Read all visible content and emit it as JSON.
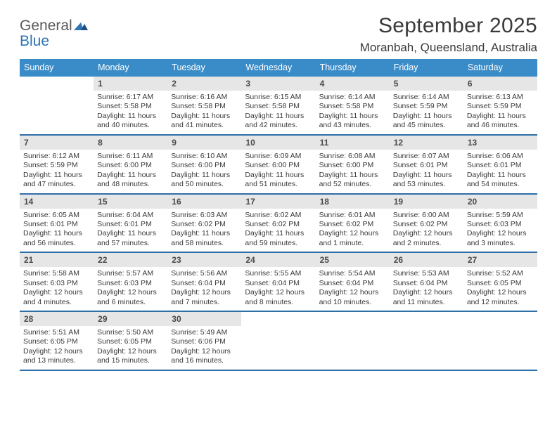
{
  "brand": {
    "word1": "General",
    "word2": "Blue",
    "mark_color": "#2f74b5",
    "text_color": "#5b5b5b"
  },
  "title": {
    "month": "September 2025",
    "location": "Moranbah, Queensland, Australia"
  },
  "colors": {
    "header_bg": "#3a8cc8",
    "header_text": "#ffffff",
    "daynum_bg": "#e6e6e6",
    "week_rule": "#2f6fa8",
    "body_text": "#3a3a3a",
    "page_bg": "#ffffff"
  },
  "typography": {
    "title_fontsize": 30,
    "location_fontsize": 17,
    "dayhead_fontsize": 12.5,
    "daynum_fontsize": 12,
    "cell_fontsize": 10.5
  },
  "type": "calendar-table",
  "day_headers": [
    "Sunday",
    "Monday",
    "Tuesday",
    "Wednesday",
    "Thursday",
    "Friday",
    "Saturday"
  ],
  "weeks": [
    [
      {
        "empty": true
      },
      {
        "day": "1",
        "sunrise": "Sunrise: 6:17 AM",
        "sunset": "Sunset: 5:58 PM",
        "daylight": "Daylight: 11 hours and 40 minutes."
      },
      {
        "day": "2",
        "sunrise": "Sunrise: 6:16 AM",
        "sunset": "Sunset: 5:58 PM",
        "daylight": "Daylight: 11 hours and 41 minutes."
      },
      {
        "day": "3",
        "sunrise": "Sunrise: 6:15 AM",
        "sunset": "Sunset: 5:58 PM",
        "daylight": "Daylight: 11 hours and 42 minutes."
      },
      {
        "day": "4",
        "sunrise": "Sunrise: 6:14 AM",
        "sunset": "Sunset: 5:58 PM",
        "daylight": "Daylight: 11 hours and 43 minutes."
      },
      {
        "day": "5",
        "sunrise": "Sunrise: 6:14 AM",
        "sunset": "Sunset: 5:59 PM",
        "daylight": "Daylight: 11 hours and 45 minutes."
      },
      {
        "day": "6",
        "sunrise": "Sunrise: 6:13 AM",
        "sunset": "Sunset: 5:59 PM",
        "daylight": "Daylight: 11 hours and 46 minutes."
      }
    ],
    [
      {
        "day": "7",
        "sunrise": "Sunrise: 6:12 AM",
        "sunset": "Sunset: 5:59 PM",
        "daylight": "Daylight: 11 hours and 47 minutes."
      },
      {
        "day": "8",
        "sunrise": "Sunrise: 6:11 AM",
        "sunset": "Sunset: 6:00 PM",
        "daylight": "Daylight: 11 hours and 48 minutes."
      },
      {
        "day": "9",
        "sunrise": "Sunrise: 6:10 AM",
        "sunset": "Sunset: 6:00 PM",
        "daylight": "Daylight: 11 hours and 50 minutes."
      },
      {
        "day": "10",
        "sunrise": "Sunrise: 6:09 AM",
        "sunset": "Sunset: 6:00 PM",
        "daylight": "Daylight: 11 hours and 51 minutes."
      },
      {
        "day": "11",
        "sunrise": "Sunrise: 6:08 AM",
        "sunset": "Sunset: 6:00 PM",
        "daylight": "Daylight: 11 hours and 52 minutes."
      },
      {
        "day": "12",
        "sunrise": "Sunrise: 6:07 AM",
        "sunset": "Sunset: 6:01 PM",
        "daylight": "Daylight: 11 hours and 53 minutes."
      },
      {
        "day": "13",
        "sunrise": "Sunrise: 6:06 AM",
        "sunset": "Sunset: 6:01 PM",
        "daylight": "Daylight: 11 hours and 54 minutes."
      }
    ],
    [
      {
        "day": "14",
        "sunrise": "Sunrise: 6:05 AM",
        "sunset": "Sunset: 6:01 PM",
        "daylight": "Daylight: 11 hours and 56 minutes."
      },
      {
        "day": "15",
        "sunrise": "Sunrise: 6:04 AM",
        "sunset": "Sunset: 6:01 PM",
        "daylight": "Daylight: 11 hours and 57 minutes."
      },
      {
        "day": "16",
        "sunrise": "Sunrise: 6:03 AM",
        "sunset": "Sunset: 6:02 PM",
        "daylight": "Daylight: 11 hours and 58 minutes."
      },
      {
        "day": "17",
        "sunrise": "Sunrise: 6:02 AM",
        "sunset": "Sunset: 6:02 PM",
        "daylight": "Daylight: 11 hours and 59 minutes."
      },
      {
        "day": "18",
        "sunrise": "Sunrise: 6:01 AM",
        "sunset": "Sunset: 6:02 PM",
        "daylight": "Daylight: 12 hours and 1 minute."
      },
      {
        "day": "19",
        "sunrise": "Sunrise: 6:00 AM",
        "sunset": "Sunset: 6:02 PM",
        "daylight": "Daylight: 12 hours and 2 minutes."
      },
      {
        "day": "20",
        "sunrise": "Sunrise: 5:59 AM",
        "sunset": "Sunset: 6:03 PM",
        "daylight": "Daylight: 12 hours and 3 minutes."
      }
    ],
    [
      {
        "day": "21",
        "sunrise": "Sunrise: 5:58 AM",
        "sunset": "Sunset: 6:03 PM",
        "daylight": "Daylight: 12 hours and 4 minutes."
      },
      {
        "day": "22",
        "sunrise": "Sunrise: 5:57 AM",
        "sunset": "Sunset: 6:03 PM",
        "daylight": "Daylight: 12 hours and 6 minutes."
      },
      {
        "day": "23",
        "sunrise": "Sunrise: 5:56 AM",
        "sunset": "Sunset: 6:04 PM",
        "daylight": "Daylight: 12 hours and 7 minutes."
      },
      {
        "day": "24",
        "sunrise": "Sunrise: 5:55 AM",
        "sunset": "Sunset: 6:04 PM",
        "daylight": "Daylight: 12 hours and 8 minutes."
      },
      {
        "day": "25",
        "sunrise": "Sunrise: 5:54 AM",
        "sunset": "Sunset: 6:04 PM",
        "daylight": "Daylight: 12 hours and 10 minutes."
      },
      {
        "day": "26",
        "sunrise": "Sunrise: 5:53 AM",
        "sunset": "Sunset: 6:04 PM",
        "daylight": "Daylight: 12 hours and 11 minutes."
      },
      {
        "day": "27",
        "sunrise": "Sunrise: 5:52 AM",
        "sunset": "Sunset: 6:05 PM",
        "daylight": "Daylight: 12 hours and 12 minutes."
      }
    ],
    [
      {
        "day": "28",
        "sunrise": "Sunrise: 5:51 AM",
        "sunset": "Sunset: 6:05 PM",
        "daylight": "Daylight: 12 hours and 13 minutes."
      },
      {
        "day": "29",
        "sunrise": "Sunrise: 5:50 AM",
        "sunset": "Sunset: 6:05 PM",
        "daylight": "Daylight: 12 hours and 15 minutes."
      },
      {
        "day": "30",
        "sunrise": "Sunrise: 5:49 AM",
        "sunset": "Sunset: 6:06 PM",
        "daylight": "Daylight: 12 hours and 16 minutes."
      },
      {
        "empty": true
      },
      {
        "empty": true
      },
      {
        "empty": true
      },
      {
        "empty": true
      }
    ]
  ]
}
